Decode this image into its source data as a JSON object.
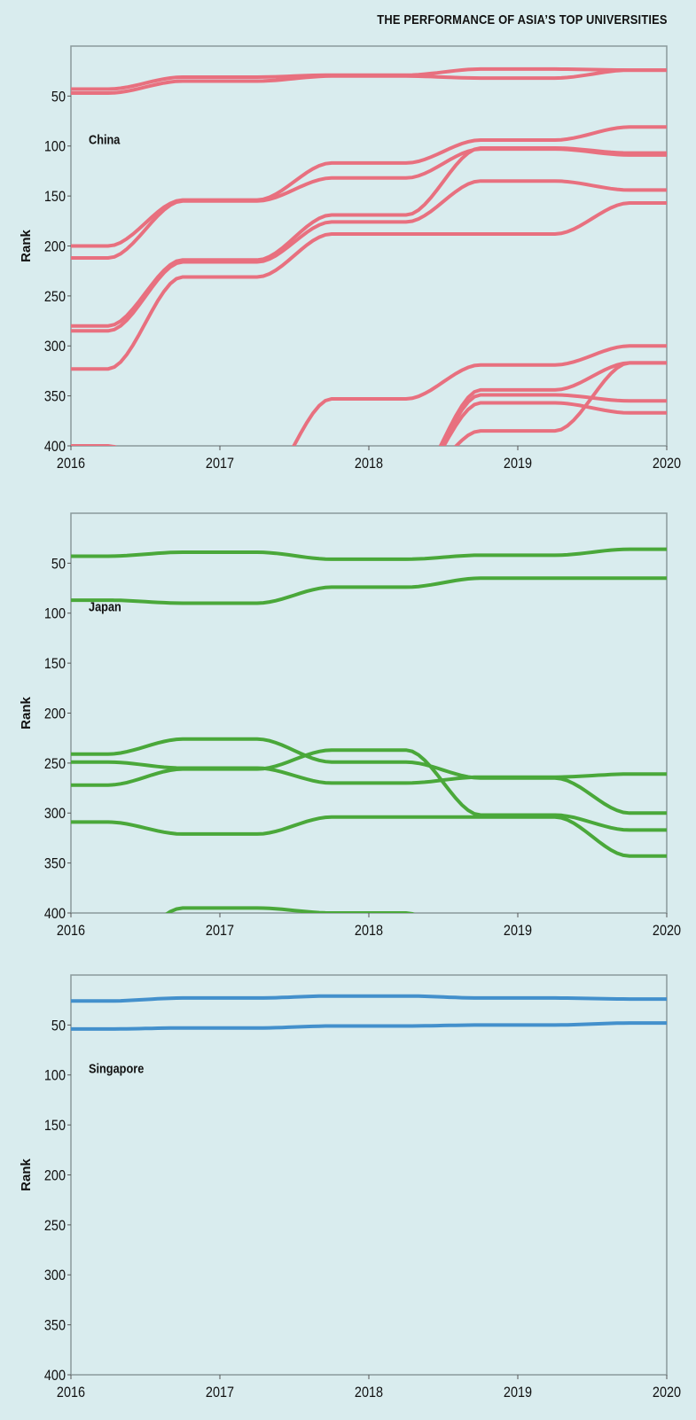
{
  "title": "THE PERFORMANCE OF ASIA’S TOP UNIVERSITIES",
  "chart_data": [
    {
      "type": "line",
      "panel_label": "China",
      "ylabel": "Rank",
      "color": "#e8707f",
      "x": [
        2016,
        2017,
        2018,
        2019,
        2020
      ],
      "xticks": [
        "2016",
        "2017",
        "2018",
        "2019",
        "2020"
      ],
      "yticks": [
        "50",
        "100",
        "150",
        "200",
        "250",
        "300",
        "350",
        "400"
      ],
      "ylim": [
        0,
        400
      ],
      "y_inverted": true,
      "grid": false,
      "series": [
        {
          "values": [
            43,
            31,
            29,
            23,
            24
          ]
        },
        {
          "values": [
            47,
            35,
            30,
            32,
            24
          ]
        },
        {
          "values": [
            200,
            154,
            117,
            94,
            81
          ]
        },
        {
          "values": [
            212,
            155,
            132,
            103,
            109
          ]
        },
        {
          "values": [
            280,
            214,
            169,
            102,
            107
          ]
        },
        {
          "values": [
            285,
            216,
            176,
            135,
            144
          ]
        },
        {
          "values": [
            323,
            231,
            188,
            188,
            157
          ]
        },
        {
          "values": [
            null,
            null,
            353,
            319,
            300
          ]
        },
        {
          "values": [
            null,
            null,
            null,
            349,
            355
          ]
        },
        {
          "values": [
            null,
            null,
            null,
            385,
            317
          ]
        },
        {
          "values": [
            null,
            null,
            null,
            344,
            317
          ]
        },
        {
          "values": [
            null,
            null,
            null,
            357,
            367
          ]
        },
        {
          "values": [
            400,
            null,
            null,
            null,
            null
          ]
        }
      ]
    },
    {
      "type": "line",
      "panel_label": "Japan",
      "ylabel": "Rank",
      "color": "#4aa83a",
      "x": [
        2016,
        2017,
        2018,
        2019,
        2020
      ],
      "xticks": [
        "2016",
        "2017",
        "2018",
        "2019",
        "2020"
      ],
      "yticks": [
        "50",
        "100",
        "150",
        "200",
        "250",
        "300",
        "350",
        "400"
      ],
      "ylim": [
        0,
        400
      ],
      "y_inverted": true,
      "grid": false,
      "series": [
        {
          "values": [
            43,
            39,
            46,
            42,
            36
          ]
        },
        {
          "values": [
            87,
            90,
            74,
            65,
            65
          ]
        },
        {
          "values": [
            241,
            226,
            249,
            265,
            300
          ]
        },
        {
          "values": [
            249,
            255,
            270,
            264,
            261
          ]
        },
        {
          "values": [
            272,
            256,
            237,
            302,
            317
          ]
        },
        {
          "values": [
            309,
            321,
            304,
            304,
            343
          ]
        },
        {
          "values": [
            null,
            395,
            400,
            null,
            null
          ]
        }
      ]
    },
    {
      "type": "line",
      "panel_label": "Singapore",
      "ylabel": "Rank",
      "color": "#4390cc",
      "x": [
        2016,
        2017,
        2018,
        2019,
        2020
      ],
      "xticks": [
        "2016",
        "2017",
        "2018",
        "2019",
        "2020"
      ],
      "yticks": [
        "50",
        "100",
        "150",
        "200",
        "250",
        "300",
        "350",
        "400"
      ],
      "ylim": [
        0,
        400
      ],
      "y_inverted": true,
      "grid": false,
      "series": [
        {
          "values": [
            26,
            23,
            21,
            23,
            24
          ]
        },
        {
          "values": [
            54,
            53,
            51,
            50,
            48
          ]
        }
      ]
    }
  ]
}
